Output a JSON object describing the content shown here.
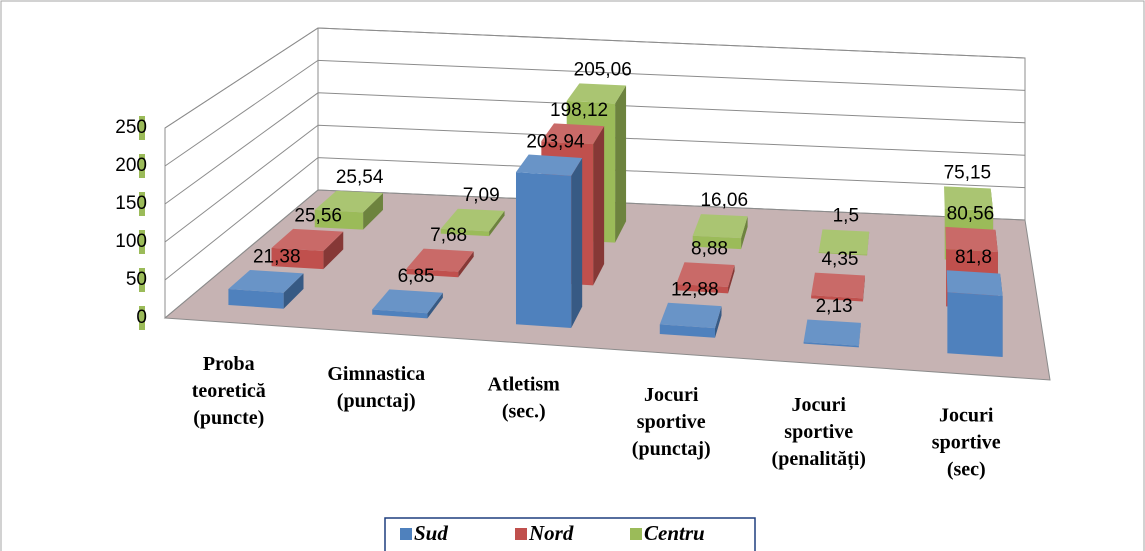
{
  "chart_data": {
    "type": "bar3d",
    "categories": [
      [
        "Proba",
        "teoretică",
        "(puncte)"
      ],
      [
        "Gimnastica",
        "(punctaj)"
      ],
      [
        "Atletism",
        "(sec.)"
      ],
      [
        "Jocuri",
        "sportive",
        "(punctaj)"
      ],
      [
        "Jocuri",
        "sportive",
        "(penalități)"
      ],
      [
        "Jocuri",
        "sportive",
        "(sec)"
      ]
    ],
    "series": [
      {
        "name": "Sud",
        "color": "#4f81bd",
        "values": [
          21.38,
          6.85,
          203.94,
          12.88,
          2.13,
          81.8
        ],
        "value_labels": [
          "21,38",
          "6,85",
          "203,94",
          "12,88",
          "2,13",
          "81,8"
        ]
      },
      {
        "name": "Nord",
        "color": "#c0504d",
        "values": [
          25.56,
          7.68,
          198.12,
          8.88,
          4.35,
          80.56
        ],
        "value_labels": [
          "25,56",
          "7,68",
          "198,12",
          "8,88",
          "4,35",
          "80,56"
        ]
      },
      {
        "name": "Centru",
        "color": "#9bbb59",
        "values": [
          25.54,
          7.09,
          205.06,
          16.06,
          1.5,
          75.15
        ],
        "value_labels": [
          "25,54",
          "7,09",
          "205,06",
          "16,06",
          "1,5",
          "75,15"
        ]
      }
    ],
    "ylim": [
      0,
      250
    ],
    "yticks": [
      0,
      50,
      100,
      150,
      200,
      250
    ],
    "grid": true,
    "legend": "bottom"
  }
}
